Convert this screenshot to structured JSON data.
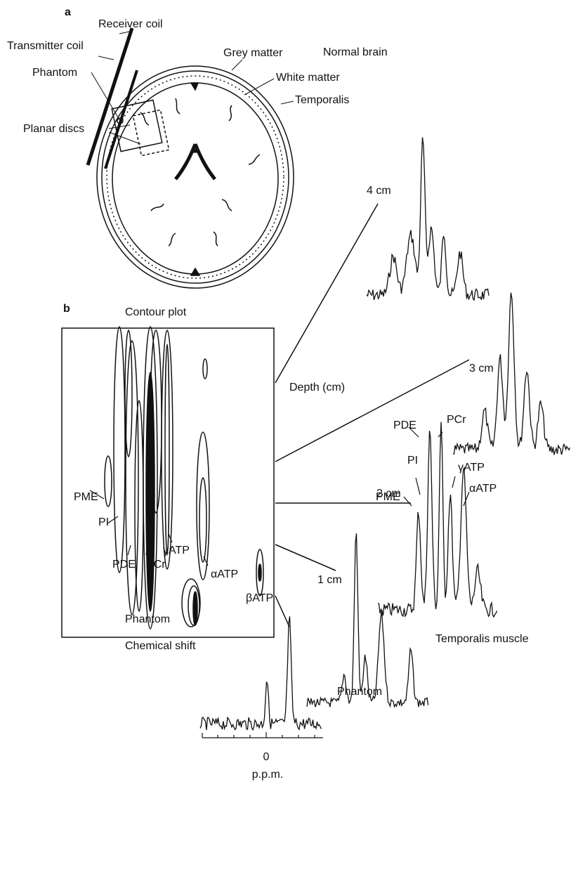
{
  "panel_a": {
    "label": "a",
    "title": "Normal brain",
    "annotations": [
      "Receiver coil",
      "Transmitter coil",
      "Phantom",
      "Grey matter",
      "White matter",
      "Temporalis",
      "Planar discs"
    ]
  },
  "panel_b": {
    "label": "b",
    "title": "Contour plot",
    "x_label": "Chemical shift",
    "y_label": "Depth (cm)",
    "contour_labels": [
      "PME",
      "PI",
      "PDE",
      "PCr",
      "γATP",
      "αATP",
      "βATP",
      "Phantom"
    ],
    "depth_labels": [
      "4 cm",
      "3 cm",
      "2 cm",
      "1 cm"
    ],
    "peak_labels": [
      "PDE",
      "PCr",
      "PI",
      "γATP",
      "PME",
      "αATP"
    ],
    "trace_labels": [
      "Temporalis muscle",
      "Phantom"
    ],
    "axis": {
      "tick": "0",
      "unit": "p.p.m."
    }
  }
}
